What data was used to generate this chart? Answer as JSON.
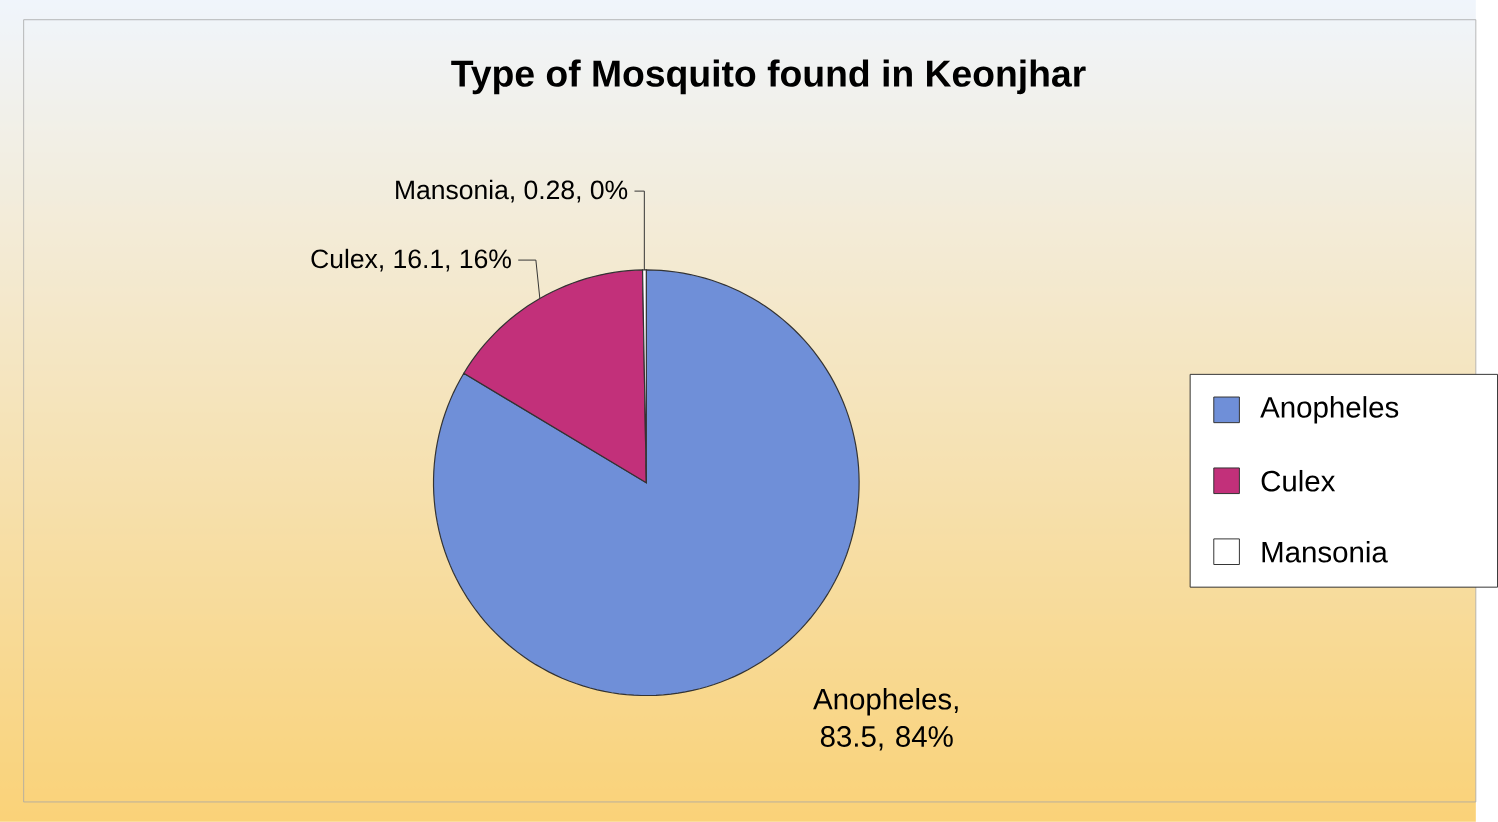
{
  "chart_data": {
    "type": "pie",
    "title": "Type of Mosquito found in Keonjhar",
    "categories": [
      "Anopheles",
      "Culex",
      "Mansonia"
    ],
    "values": [
      83.5,
      16.1,
      0.28
    ],
    "colors": [
      "#6f8fd8",
      "#c2307a",
      "#ffffff"
    ],
    "value_labels": [
      "Anopheles, 83.5, 84%",
      "Culex, 16.1, 16%",
      "Mansonia, 0.28, 0%"
    ],
    "legend": "right"
  }
}
